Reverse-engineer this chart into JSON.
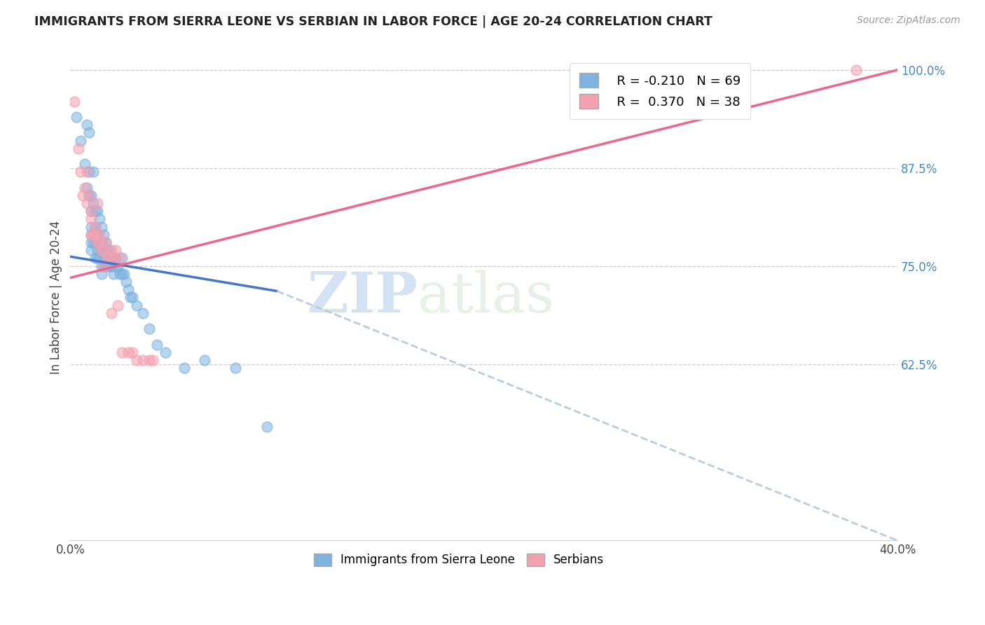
{
  "title": "IMMIGRANTS FROM SIERRA LEONE VS SERBIAN IN LABOR FORCE | AGE 20-24 CORRELATION CHART",
  "source": "Source: ZipAtlas.com",
  "ylabel": "In Labor Force | Age 20-24",
  "xlim": [
    0.0,
    0.4
  ],
  "ylim": [
    0.4,
    1.02
  ],
  "x_ticks": [
    0.0,
    0.05,
    0.1,
    0.15,
    0.2,
    0.25,
    0.3,
    0.35,
    0.4
  ],
  "x_tick_labels": [
    "0.0%",
    "",
    "",
    "",
    "",
    "",
    "",
    "",
    "40.0%"
  ],
  "y_ticks_right": [
    0.625,
    0.75,
    0.875,
    1.0
  ],
  "y_tick_labels_right": [
    "62.5%",
    "75.0%",
    "87.5%",
    "100.0%"
  ],
  "legend_R1": "R = -0.210",
  "legend_N1": "N = 69",
  "legend_R2": "R =  0.370",
  "legend_N2": "N = 38",
  "color_blue": "#7EB3E0",
  "color_pink": "#F4A0B0",
  "color_blue_line": "#4477CC",
  "color_pink_line": "#EE6688",
  "color_dashed": "#BBCCDD",
  "watermark_zip": "ZIP",
  "watermark_atlas": "atlas",
  "blue_line_x": [
    0.0,
    0.1
  ],
  "blue_line_y": [
    0.762,
    0.718
  ],
  "dashed_line_x": [
    0.1,
    0.4
  ],
  "dashed_line_y": [
    0.718,
    0.4
  ],
  "pink_line_x": [
    0.0,
    0.4
  ],
  "pink_line_y": [
    0.735,
    1.0
  ],
  "sierra_leone_x": [
    0.003,
    0.005,
    0.007,
    0.008,
    0.008,
    0.009,
    0.009,
    0.009,
    0.01,
    0.01,
    0.01,
    0.01,
    0.01,
    0.01,
    0.011,
    0.011,
    0.011,
    0.012,
    0.012,
    0.012,
    0.012,
    0.013,
    0.013,
    0.013,
    0.013,
    0.014,
    0.014,
    0.014,
    0.015,
    0.015,
    0.015,
    0.015,
    0.015,
    0.016,
    0.016,
    0.016,
    0.017,
    0.017,
    0.017,
    0.018,
    0.018,
    0.018,
    0.019,
    0.019,
    0.019,
    0.02,
    0.02,
    0.021,
    0.021,
    0.022,
    0.022,
    0.023,
    0.024,
    0.025,
    0.025,
    0.026,
    0.027,
    0.028,
    0.029,
    0.03,
    0.032,
    0.035,
    0.038,
    0.042,
    0.046,
    0.055,
    0.065,
    0.08,
    0.095
  ],
  "sierra_leone_y": [
    0.94,
    0.91,
    0.88,
    0.93,
    0.85,
    0.92,
    0.87,
    0.84,
    0.84,
    0.82,
    0.8,
    0.79,
    0.78,
    0.77,
    0.87,
    0.83,
    0.78,
    0.82,
    0.8,
    0.78,
    0.76,
    0.82,
    0.79,
    0.77,
    0.76,
    0.81,
    0.78,
    0.76,
    0.8,
    0.78,
    0.77,
    0.75,
    0.74,
    0.79,
    0.77,
    0.75,
    0.78,
    0.76,
    0.75,
    0.77,
    0.76,
    0.75,
    0.77,
    0.76,
    0.75,
    0.76,
    0.75,
    0.76,
    0.74,
    0.76,
    0.75,
    0.75,
    0.74,
    0.76,
    0.74,
    0.74,
    0.73,
    0.72,
    0.71,
    0.71,
    0.7,
    0.69,
    0.67,
    0.65,
    0.64,
    0.62,
    0.63,
    0.62,
    0.545
  ],
  "serbians_x": [
    0.002,
    0.004,
    0.005,
    0.006,
    0.007,
    0.008,
    0.009,
    0.01,
    0.01,
    0.011,
    0.012,
    0.013,
    0.014,
    0.015,
    0.016,
    0.017,
    0.018,
    0.019,
    0.02,
    0.021,
    0.022,
    0.023,
    0.024,
    0.025,
    0.028,
    0.03,
    0.032,
    0.035,
    0.038,
    0.04,
    0.01,
    0.012,
    0.014,
    0.008,
    0.013,
    0.016,
    0.02,
    0.38
  ],
  "serbians_y": [
    0.96,
    0.9,
    0.87,
    0.84,
    0.85,
    0.83,
    0.84,
    0.81,
    0.79,
    0.79,
    0.79,
    0.78,
    0.78,
    0.77,
    0.77,
    0.78,
    0.76,
    0.76,
    0.77,
    0.76,
    0.77,
    0.7,
    0.76,
    0.64,
    0.64,
    0.64,
    0.63,
    0.63,
    0.63,
    0.63,
    0.82,
    0.8,
    0.79,
    0.87,
    0.83,
    0.75,
    0.69,
    1.0
  ]
}
